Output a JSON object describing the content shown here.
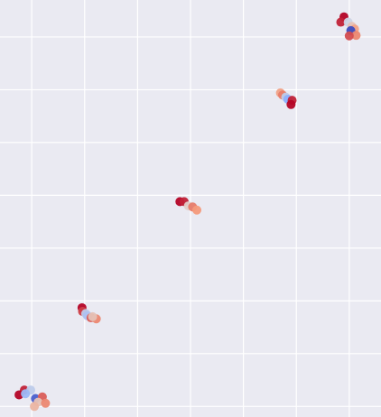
{
  "chart_data": {
    "type": "scatter",
    "title": "",
    "xlabel": "",
    "ylabel": "",
    "grid": true,
    "background": "#eaeaf2",
    "grid_color": "#ffffff",
    "xlim": [
      -0.6,
      6.6
    ],
    "ylim": [
      -0.2,
      7.7
    ],
    "xticks": [
      0,
      1,
      2,
      3,
      4,
      5,
      6
    ],
    "yticks": [
      0,
      1,
      2,
      3,
      4,
      5,
      6,
      7
    ],
    "colormap": "coolwarm",
    "points": [
      {
        "x": 5.9,
        "y": 7.38,
        "c": 1.0
      },
      {
        "x": 5.84,
        "y": 7.28,
        "c": 0.95
      },
      {
        "x": 5.98,
        "y": 7.28,
        "c": 0.45
      },
      {
        "x": 6.05,
        "y": 7.2,
        "c": 0.6
      },
      {
        "x": 6.1,
        "y": 7.15,
        "c": 0.72
      },
      {
        "x": 6.03,
        "y": 7.12,
        "c": 0.0
      },
      {
        "x": 6.13,
        "y": 7.03,
        "c": 0.78
      },
      {
        "x": 6.0,
        "y": 7.02,
        "c": 0.88
      },
      {
        "x": 4.7,
        "y": 5.94,
        "c": 0.72
      },
      {
        "x": 4.74,
        "y": 5.9,
        "c": 0.8
      },
      {
        "x": 4.8,
        "y": 5.86,
        "c": 0.4
      },
      {
        "x": 4.84,
        "y": 5.82,
        "c": 0.25
      },
      {
        "x": 4.92,
        "y": 5.8,
        "c": 0.95
      },
      {
        "x": 4.9,
        "y": 5.72,
        "c": 1.0
      },
      {
        "x": 2.8,
        "y": 3.88,
        "c": 1.0
      },
      {
        "x": 2.88,
        "y": 3.88,
        "c": 0.95
      },
      {
        "x": 2.96,
        "y": 3.8,
        "c": 0.55
      },
      {
        "x": 3.04,
        "y": 3.78,
        "c": 0.8
      },
      {
        "x": 3.12,
        "y": 3.72,
        "c": 0.75
      },
      {
        "x": 0.95,
        "y": 1.87,
        "c": 1.0
      },
      {
        "x": 0.96,
        "y": 1.8,
        "c": 0.9
      },
      {
        "x": 1.02,
        "y": 1.76,
        "c": 0.4
      },
      {
        "x": 1.05,
        "y": 1.72,
        "c": 0.35
      },
      {
        "x": 1.12,
        "y": 1.68,
        "c": 0.85
      },
      {
        "x": 1.22,
        "y": 1.66,
        "c": 0.78
      },
      {
        "x": 1.15,
        "y": 1.7,
        "c": 0.6
      },
      {
        "x": -0.14,
        "y": 0.31,
        "c": 0.95
      },
      {
        "x": -0.02,
        "y": 0.31,
        "c": 0.4
      },
      {
        "x": -0.24,
        "y": 0.22,
        "c": 1.0
      },
      {
        "x": -0.12,
        "y": 0.24,
        "c": 0.3
      },
      {
        "x": 0.07,
        "y": 0.15,
        "c": 0.05
      },
      {
        "x": 0.2,
        "y": 0.18,
        "c": 0.85
      },
      {
        "x": 0.12,
        "y": 0.08,
        "c": 0.6
      },
      {
        "x": 0.26,
        "y": 0.06,
        "c": 0.78
      },
      {
        "x": 0.05,
        "y": 0.0,
        "c": 0.65
      }
    ]
  }
}
